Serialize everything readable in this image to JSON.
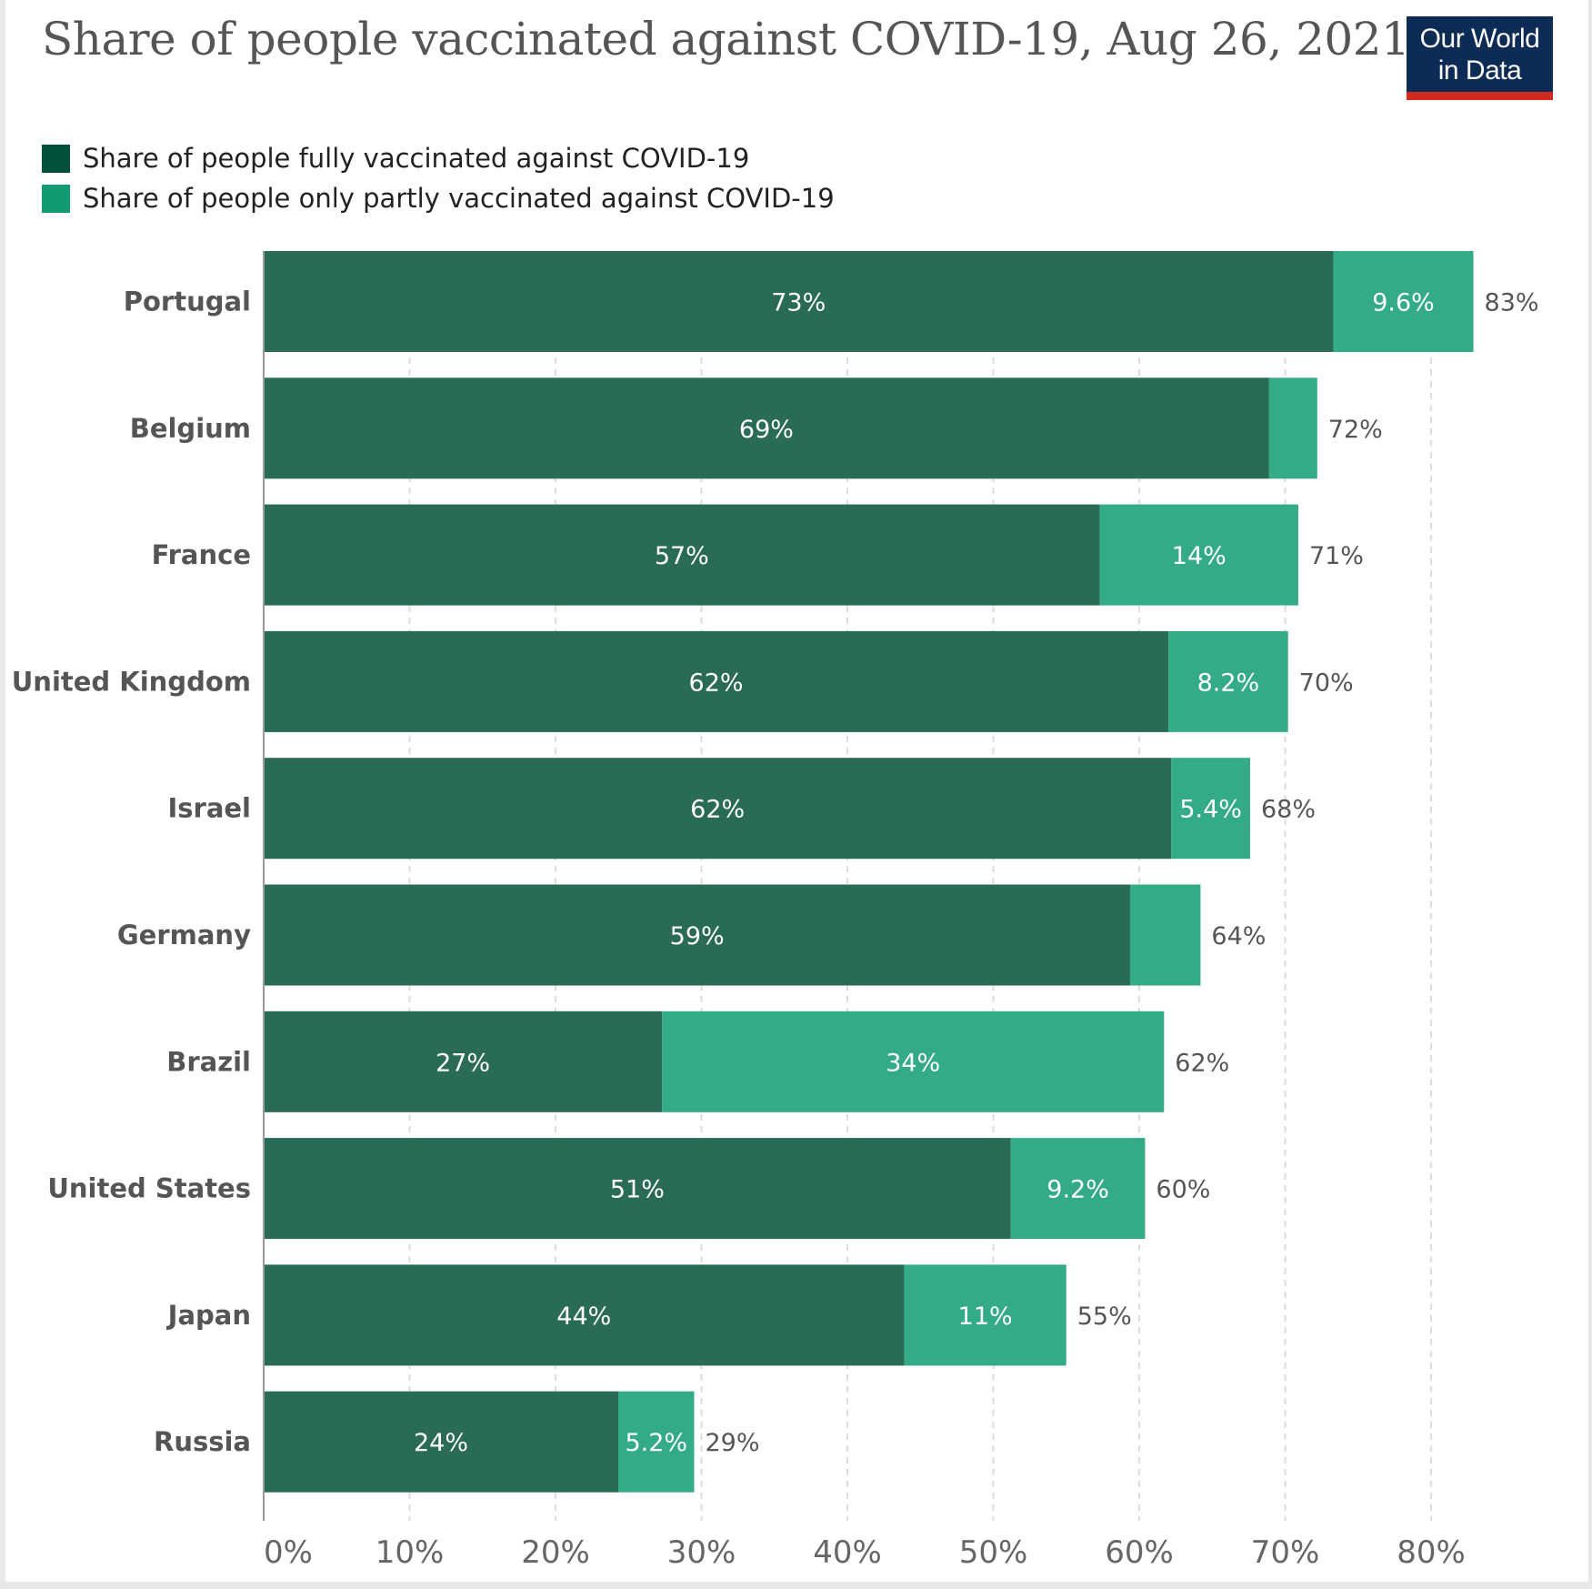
{
  "header": {
    "title": "Share of people vaccinated against COVID-19, Aug 26, 2021",
    "logo_line1": "Our World",
    "logo_line2": "in Data"
  },
  "colors": {
    "full": "#2a6b55",
    "partial": "#33ab86",
    "legend_full": "#00513a",
    "legend_partial": "#109b73",
    "grid": "#dddddd",
    "axis": "#999999"
  },
  "chart_data": {
    "type": "bar",
    "orientation": "horizontal",
    "stacked": true,
    "title": "Share of people vaccinated against COVID-19, Aug 26, 2021",
    "categories": [
      "Portugal",
      "Belgium",
      "France",
      "United Kingdom",
      "Israel",
      "Germany",
      "Brazil",
      "United States",
      "Japan",
      "Russia"
    ],
    "series": [
      {
        "name": "Share of people fully vaccinated against COVID-19",
        "values": [
          73.3,
          68.9,
          57.3,
          62.0,
          62.2,
          59.4,
          27.3,
          51.2,
          43.9,
          24.3
        ],
        "labels": [
          "73%",
          "69%",
          "57%",
          "62%",
          "62%",
          "59%",
          "27%",
          "51%",
          "44%",
          "24%"
        ]
      },
      {
        "name": "Share of people only partly vaccinated against COVID-19",
        "values": [
          9.6,
          3.3,
          13.6,
          8.2,
          5.4,
          4.8,
          34.4,
          9.2,
          11.1,
          5.2
        ],
        "labels": [
          "9.6%",
          "",
          "14%",
          "8.2%",
          "5.4%",
          "",
          "34%",
          "9.2%",
          "11%",
          "5.2%"
        ]
      }
    ],
    "totals": [
      "83%",
      "72%",
      "71%",
      "70%",
      "68%",
      "64%",
      "62%",
      "60%",
      "55%",
      "29%"
    ],
    "xlim": [
      0,
      80
    ],
    "xticks": [
      0,
      10,
      20,
      30,
      40,
      50,
      60,
      70,
      80
    ],
    "xtick_labels": [
      "0%",
      "10%",
      "20%",
      "30%",
      "40%",
      "50%",
      "60%",
      "70%",
      "80%"
    ],
    "grid": true,
    "legend_position": "top-left"
  }
}
